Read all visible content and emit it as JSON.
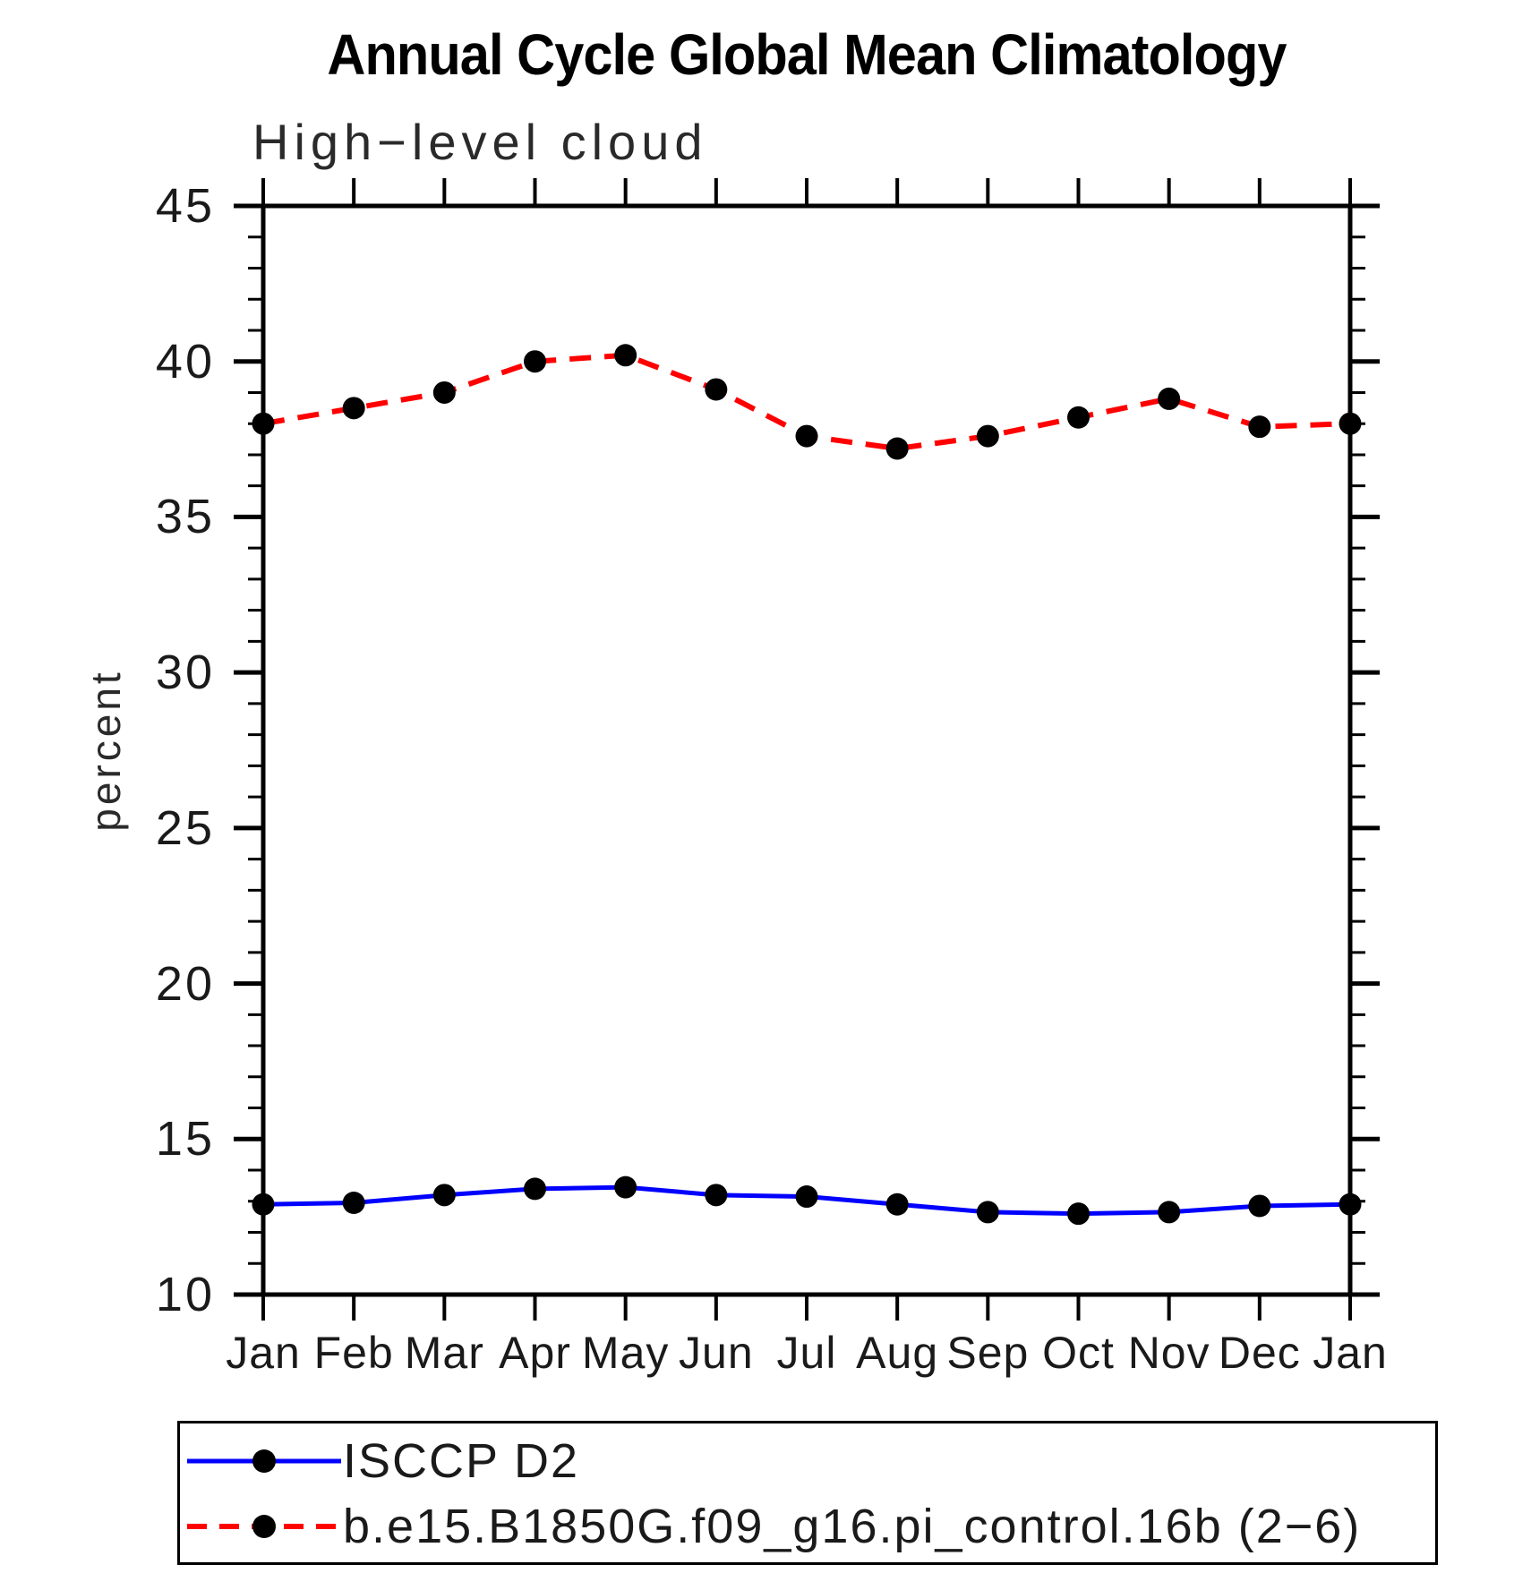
{
  "title": "Annual Cycle Global Mean Climatology",
  "chart_data": {
    "type": "line",
    "subtitle": "High−level cloud",
    "ylabel": "percent",
    "ylim": [
      10,
      45
    ],
    "ytick_labels": [
      "10",
      "15",
      "20",
      "25",
      "30",
      "35",
      "40",
      "45"
    ],
    "ytick_minor_step": 1,
    "x_labels": [
      "Jan",
      "Feb",
      "Mar",
      "Apr",
      "May",
      "Jun",
      "Jul",
      "Aug",
      "Sep",
      "Oct",
      "Nov",
      "Dec",
      "Jan"
    ],
    "grid": false,
    "frame": "box-with-outward-ticks",
    "legend_position": "bottom-left-box",
    "marker": "filled-circle",
    "marker_color": "#000000",
    "series": [
      {
        "name": "ISCCP D2",
        "color": "#0000ff",
        "line_style": "solid",
        "line_width": 5,
        "values": [
          12.9,
          12.95,
          13.2,
          13.4,
          13.45,
          13.2,
          13.15,
          12.9,
          12.65,
          12.6,
          12.65,
          12.85,
          12.9
        ]
      },
      {
        "name": "b.e15.B1850G.f09_g16.pi_control.16b (2−6)",
        "color": "#ff0000",
        "line_style": "dashed",
        "line_width": 6,
        "values": [
          38.0,
          38.5,
          39.0,
          40.0,
          40.2,
          39.1,
          37.6,
          37.2,
          37.6,
          38.2,
          38.8,
          37.9,
          38.0
        ]
      }
    ]
  }
}
